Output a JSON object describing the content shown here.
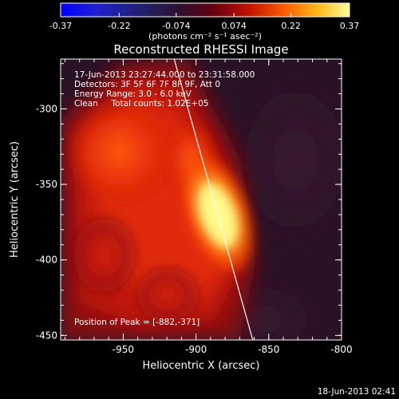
{
  "colorbar": {
    "ticks": [
      {
        "label": "-0.37",
        "value": -0.37
      },
      {
        "label": "-0.22",
        "value": -0.22
      },
      {
        "label": "-0.074",
        "value": -0.074
      },
      {
        "label": "0.074",
        "value": 0.074
      },
      {
        "label": "0.22",
        "value": 0.22
      },
      {
        "label": "0.37",
        "value": 0.37
      }
    ],
    "range": [
      -0.37,
      0.37
    ],
    "unit_label": "(photons cm⁻² s⁻¹ asec⁻²)"
  },
  "chart_data": {
    "type": "heatmap",
    "title": "Reconstructed RHESSI Image",
    "xlabel": "Heliocentric X (arcsec)",
    "ylabel": "Heliocentric Y (arcsec)",
    "xlim": [
      -993,
      -800
    ],
    "ylim": [
      -453,
      -267
    ],
    "xticks": [
      {
        "label": "-950",
        "value": -950
      },
      {
        "label": "-900",
        "value": -900
      },
      {
        "label": "-850",
        "value": -850
      },
      {
        "label": "-800",
        "value": -800
      }
    ],
    "yticks": [
      {
        "label": "-300",
        "value": -300
      },
      {
        "label": "-350",
        "value": -350
      },
      {
        "label": "-400",
        "value": -400
      },
      {
        "label": "-450",
        "value": -450
      }
    ],
    "peak": {
      "x": -882,
      "y": -371
    },
    "limb_line": [
      [
        -915,
        -267
      ],
      [
        -861,
        -453
      ]
    ],
    "info_lines": [
      "17-Jun-2013 23:27:44.000 to 23:31:58.000",
      "Detectors: 3F 5F 6F 7F 8F 9F, Att 0",
      "Energy Range: 3.0 - 6.0 keV",
      "Clean     Total counts: 1.02E+05"
    ],
    "peak_label": "Position of Peak = [-882,-371]"
  },
  "timestamp": "18-Jun-2013 02:41"
}
